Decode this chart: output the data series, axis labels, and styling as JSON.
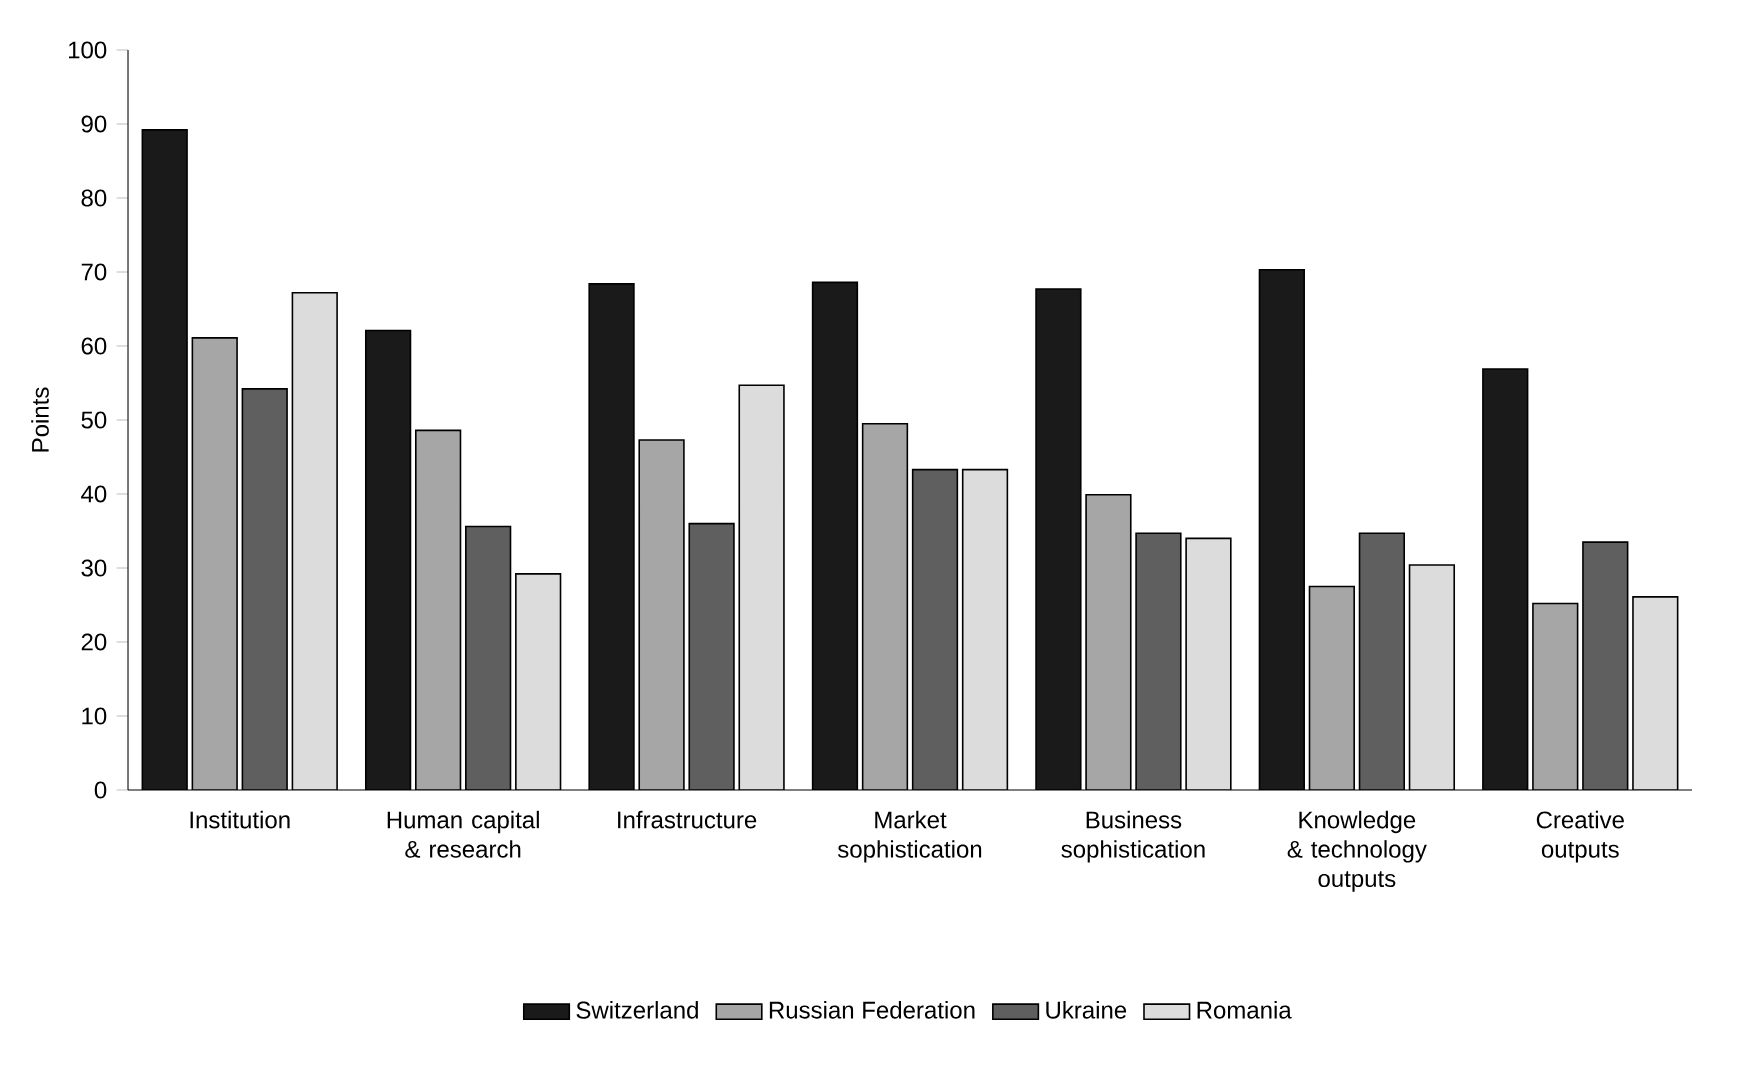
{
  "chart_data": {
    "type": "bar",
    "ylabel": "Points",
    "categories": [
      "Institution",
      "Human capital & research",
      "Infrastructure",
      "Market sophistication",
      "Business sophistication",
      "Knowledge & technology outputs",
      "Creative outputs"
    ],
    "series": [
      {
        "name": "Switzerland",
        "color": "#1a1a1a",
        "values": [
          89.2,
          62.1,
          68.4,
          68.6,
          67.7,
          70.3,
          56.9
        ]
      },
      {
        "name": "Russian Federation",
        "color": "#a6a6a6",
        "values": [
          61.1,
          48.6,
          47.3,
          49.5,
          39.9,
          27.5,
          25.2
        ]
      },
      {
        "name": "Ukraine",
        "color": "#5f5f5f",
        "values": [
          54.2,
          35.6,
          36.0,
          43.3,
          34.7,
          34.7,
          33.5
        ]
      },
      {
        "name": "Romania",
        "color": "#dcdcdc",
        "values": [
          67.2,
          29.2,
          54.7,
          43.3,
          34.0,
          30.4,
          26.1
        ]
      }
    ],
    "ylim": [
      0,
      100
    ],
    "yticks": [
      0,
      10,
      20,
      30,
      40,
      50,
      60,
      70,
      80,
      90,
      100
    ],
    "grid": false,
    "legend": "bottom"
  }
}
